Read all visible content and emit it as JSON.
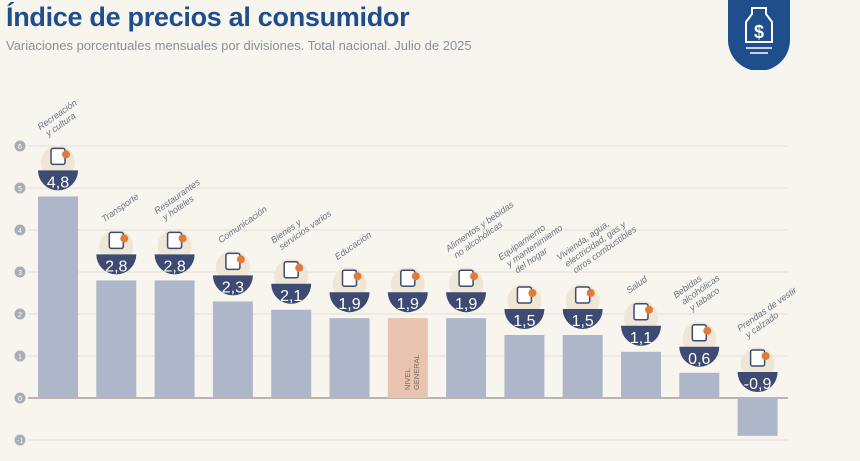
{
  "header": {
    "title": "Índice de precios al consumidor",
    "subtitle": "Variaciones porcentuales mensuales por divisiones. Total nacional. Julio de 2025"
  },
  "chart_data": {
    "type": "bar",
    "title": "Índice de precios al consumidor",
    "subtitle": "Variaciones porcentuales mensuales por divisiones. Total nacional. Julio de 2025",
    "xlabel": "",
    "ylabel": "",
    "ylim": [
      -1,
      6
    ],
    "yticks": [
      6,
      5,
      4,
      3,
      2,
      1,
      0,
      -1
    ],
    "grid": true,
    "categories": [
      "Recreación y cultura",
      "Transporte",
      "Restaurantes y hoteles",
      "Comunicación",
      "Bienes y servicios varios",
      "Educación",
      "Nivel general",
      "Alimentos y bebidas no alcohólicas",
      "Equipamiento y mantenimiento del hogar",
      "Vivienda, agua, electricidad, gas y otros combustibles",
      "Salud",
      "Bebidas alcohólicas y tabaco",
      "Prendas de vestir y calzado"
    ],
    "label_lines": [
      [
        "Recreación",
        "y cultura"
      ],
      [
        "Transporte"
      ],
      [
        "Restaurantes",
        "y hoteles"
      ],
      [
        "Comunicación"
      ],
      [
        "Bienes y",
        "servicios varios"
      ],
      [
        "Educación"
      ],
      [],
      [
        "Alimentos y bebidas",
        "no alcohólicas"
      ],
      [
        "Equipamiento",
        "y mantenimiento",
        "del hogar"
      ],
      [
        "Vivienda, agua,",
        "electricidad, gas y",
        "otros combustibles"
      ],
      [
        "Salud"
      ],
      [
        "Bebidas",
        "alcohólicas",
        "y tabaco"
      ],
      [
        "Prendas de vestir",
        "y calzado"
      ]
    ],
    "values": [
      4.8,
      2.8,
      2.8,
      2.3,
      2.1,
      1.9,
      1.9,
      1.9,
      1.5,
      1.5,
      1.1,
      0.6,
      -0.9
    ],
    "value_labels": [
      "4,8",
      "2,8",
      "2,8",
      "2,3",
      "2,1",
      "1,9",
      "1,9",
      "1,9",
      "1,5",
      "1,5",
      "1,1",
      "0,6",
      "-0,9"
    ],
    "highlight_index": 6,
    "highlight_label": [
      "NIVEL",
      "GENERAL"
    ],
    "colors": {
      "bar": "#aeb7c9",
      "highlight": "#e8c3ad",
      "bubble": "#3d4a72",
      "accent": "#e07b3a",
      "grid": "#e4e0d8"
    }
  }
}
